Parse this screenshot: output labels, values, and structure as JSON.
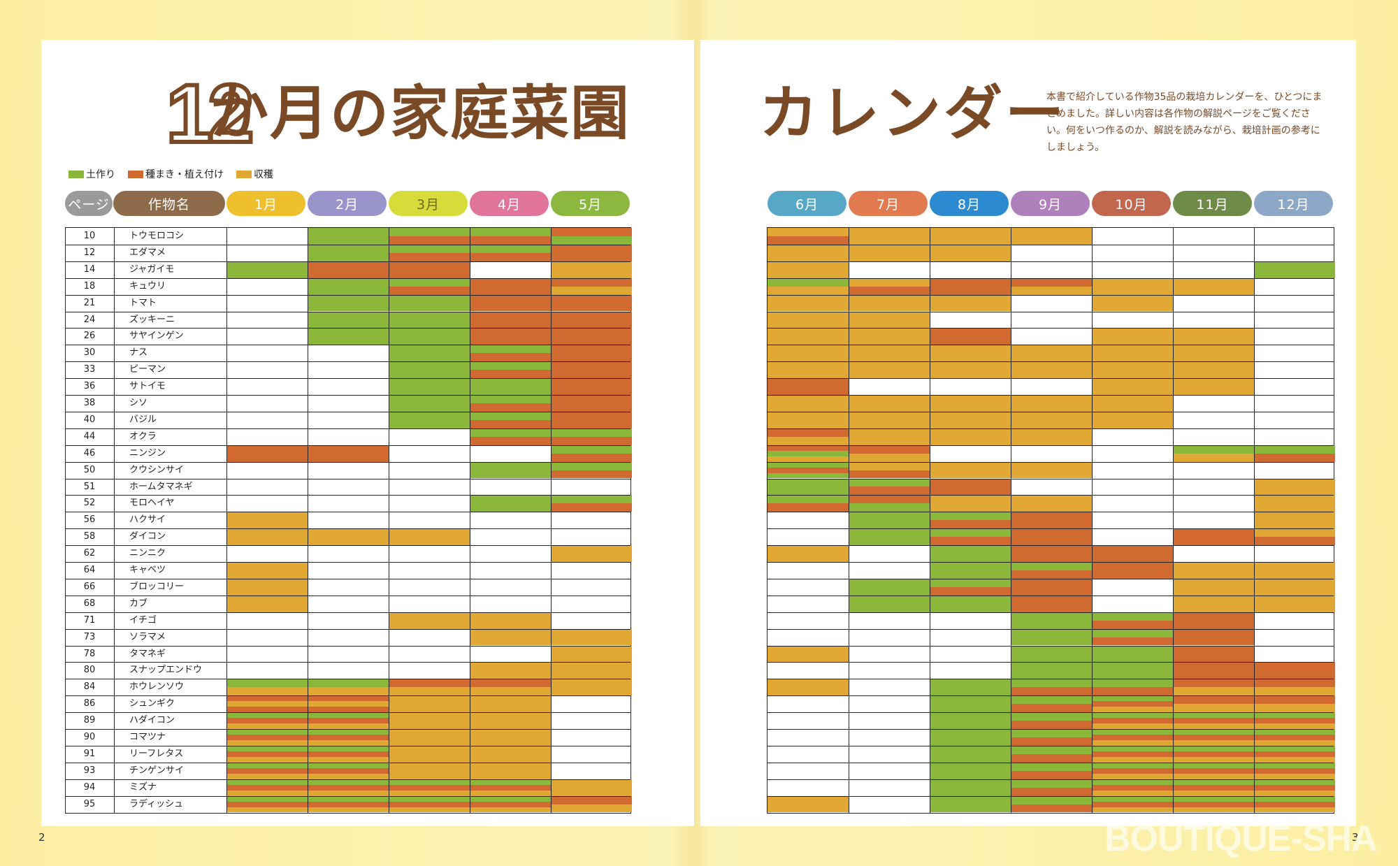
{
  "title_left_num": "12",
  "title_left_text": "か月の家庭菜園",
  "title_right": "カレンダー",
  "description": "本書で紹介している作物35品の栽培カレンダーを、ひとつにまとめました。詳しい内容は各作物の解説ページをご覧ください。何をいつ作るのか、解説を読みながら、栽培計画の参考にしましょう。",
  "legend": [
    {
      "label": "土作り",
      "color": "#8ab63a"
    },
    {
      "label": "種まき・植え付け",
      "color": "#d06a30"
    },
    {
      "label": "収穫",
      "color": "#e0a832"
    }
  ],
  "colors": {
    "green": "#8ab63a",
    "orange": "#d06a30",
    "yellow": "#e0a832"
  },
  "headers": {
    "page": "ページ",
    "name": "作物名"
  },
  "months": [
    {
      "label": "1月",
      "color": "#eec02e"
    },
    {
      "label": "2月",
      "color": "#9a94cc"
    },
    {
      "label": "3月",
      "color": "#d8dc3a"
    },
    {
      "label": "4月",
      "color": "#e0749a"
    },
    {
      "label": "5月",
      "color": "#8cb840"
    },
    {
      "label": "6月",
      "color": "#56a8c6"
    },
    {
      "label": "7月",
      "color": "#e27a50"
    },
    {
      "label": "8月",
      "color": "#2c8ad0"
    },
    {
      "label": "9月",
      "color": "#b080bc"
    },
    {
      "label": "10月",
      "color": "#c2664e"
    },
    {
      "label": "11月",
      "color": "#6e8c48"
    },
    {
      "label": "12月",
      "color": "#8ca8c6"
    }
  ],
  "crops": [
    {
      "page": "10",
      "name": "トウモロコシ",
      "cells": [
        "",
        "g",
        "go",
        "go",
        "og",
        "yo",
        "y",
        "y",
        "y",
        "",
        "",
        ""
      ]
    },
    {
      "page": "12",
      "name": "エダマメ",
      "cells": [
        "",
        "g",
        "go",
        "go",
        "o",
        "y",
        "y",
        "y",
        "",
        "",
        "",
        ""
      ]
    },
    {
      "page": "14",
      "name": "ジャガイモ",
      "cells": [
        "g",
        "o",
        "o",
        "",
        "y",
        "y",
        "",
        "",
        "",
        "",
        "",
        "g"
      ]
    },
    {
      "page": "18",
      "name": "キュウリ",
      "cells": [
        "",
        "g",
        "go",
        "o",
        "oy",
        "gy",
        "yo",
        "o",
        "oy",
        "y",
        "y",
        ""
      ]
    },
    {
      "page": "21",
      "name": "トマト",
      "cells": [
        "",
        "g",
        "g",
        "o",
        "o",
        "y",
        "y",
        "y",
        "",
        "y",
        "",
        ""
      ]
    },
    {
      "page": "24",
      "name": "ズッキーニ",
      "cells": [
        "",
        "g",
        "g",
        "o",
        "o",
        "y",
        "y",
        "",
        "",
        "",
        "",
        ""
      ]
    },
    {
      "page": "26",
      "name": "サヤインゲン",
      "cells": [
        "",
        "g",
        "g",
        "o",
        "o",
        "y",
        "y",
        "o",
        "",
        "y",
        "y",
        ""
      ]
    },
    {
      "page": "30",
      "name": "ナス",
      "cells": [
        "",
        "",
        "g",
        "go",
        "o",
        "y",
        "y",
        "y",
        "y",
        "y",
        "y",
        ""
      ]
    },
    {
      "page": "33",
      "name": "ピーマン",
      "cells": [
        "",
        "",
        "g",
        "go",
        "o",
        "y",
        "y",
        "y",
        "y",
        "y",
        "y",
        ""
      ]
    },
    {
      "page": "36",
      "name": "サトイモ",
      "cells": [
        "",
        "",
        "g",
        "g",
        "o",
        "o",
        "",
        "",
        "",
        "y",
        "y",
        ""
      ]
    },
    {
      "page": "38",
      "name": "シソ",
      "cells": [
        "",
        "",
        "g",
        "go",
        "o",
        "y",
        "y",
        "y",
        "y",
        "y",
        "",
        ""
      ]
    },
    {
      "page": "40",
      "name": "バジル",
      "cells": [
        "",
        "",
        "g",
        "go",
        "o",
        "y",
        "y",
        "y",
        "y",
        "y",
        "",
        ""
      ]
    },
    {
      "page": "44",
      "name": "オクラ",
      "cells": [
        "",
        "",
        "",
        "go",
        "go",
        "oy",
        "y",
        "y",
        "y",
        "",
        "",
        ""
      ]
    },
    {
      "page": "46",
      "name": "ニンジン",
      "cells": [
        "o",
        "o",
        "",
        "",
        "go",
        "ogy",
        "oy",
        "",
        "",
        "",
        "gy",
        "go"
      ]
    },
    {
      "page": "50",
      "name": "クウシンサイ",
      "cells": [
        "",
        "",
        "",
        "g",
        "go",
        "gog",
        "yo",
        "y",
        "y",
        "",
        "",
        ""
      ]
    },
    {
      "page": "51",
      "name": "ホームタマネギ",
      "cells": [
        "",
        "",
        "",
        "",
        "",
        "g",
        "go",
        "o",
        "",
        "",
        "",
        "y"
      ]
    },
    {
      "page": "52",
      "name": "モロヘイヤ",
      "cells": [
        "",
        "",
        "",
        "g",
        "go",
        "go",
        "og",
        "y",
        "y",
        "",
        "",
        "y"
      ]
    },
    {
      "page": "56",
      "name": "ハクサイ",
      "cells": [
        "y",
        "",
        "",
        "",
        "",
        "",
        "g",
        "go",
        "o",
        "",
        "",
        "y"
      ]
    },
    {
      "page": "58",
      "name": "ダイコン",
      "cells": [
        "y",
        "y",
        "y",
        "",
        "",
        "",
        "g",
        "go",
        "o",
        "",
        "o",
        "yo"
      ]
    },
    {
      "page": "62",
      "name": "ニンニク",
      "cells": [
        "",
        "",
        "",
        "",
        "y",
        "y",
        "",
        "g",
        "o",
        "o",
        "",
        ""
      ]
    },
    {
      "page": "64",
      "name": "キャベツ",
      "cells": [
        "y",
        "",
        "",
        "",
        "",
        "",
        "",
        "g",
        "go",
        "o",
        "y",
        "y"
      ]
    },
    {
      "page": "66",
      "name": "ブロッコリー",
      "cells": [
        "y",
        "",
        "",
        "",
        "",
        "",
        "g",
        "go",
        "o",
        "",
        "y",
        "y"
      ]
    },
    {
      "page": "68",
      "name": "カブ",
      "cells": [
        "y",
        "",
        "",
        "",
        "",
        "",
        "g",
        "g",
        "o",
        "",
        "y",
        "y"
      ]
    },
    {
      "page": "71",
      "name": "イチゴ",
      "cells": [
        "",
        "",
        "y",
        "y",
        "",
        "",
        "",
        "",
        "g",
        "go",
        "o",
        ""
      ]
    },
    {
      "page": "73",
      "name": "ソラマメ",
      "cells": [
        "",
        "",
        "",
        "y",
        "y",
        "",
        "",
        "",
        "g",
        "go",
        "o",
        ""
      ]
    },
    {
      "page": "78",
      "name": "タマネギ",
      "cells": [
        "",
        "",
        "",
        "",
        "y",
        "y",
        "",
        "",
        "g",
        "g",
        "o",
        ""
      ]
    },
    {
      "page": "80",
      "name": "スナップエンドウ",
      "cells": [
        "",
        "",
        "",
        "y",
        "y",
        "",
        "",
        "",
        "g",
        "g",
        "o",
        "o"
      ]
    },
    {
      "page": "84",
      "name": "ホウレンソウ",
      "cells": [
        "gy",
        "gy",
        "oy",
        "oy",
        "y",
        "y",
        "",
        "g",
        "go",
        "go",
        "oy",
        "oy"
      ]
    },
    {
      "page": "86",
      "name": "シュンギク",
      "cells": [
        "oyo",
        "oyo",
        "y",
        "y",
        "",
        "",
        "",
        "g",
        "go",
        "goy",
        "oy",
        "oy"
      ]
    },
    {
      "page": "89",
      "name": "ハダイコン",
      "cells": [
        "goy",
        "goy",
        "y",
        "y",
        "",
        "",
        "",
        "g",
        "go",
        "goy",
        "goy",
        "goy"
      ]
    },
    {
      "page": "90",
      "name": "コマツナ",
      "cells": [
        "goy",
        "goy",
        "y",
        "y",
        "",
        "",
        "",
        "g",
        "go",
        "goy",
        "goy",
        "goy"
      ]
    },
    {
      "page": "91",
      "name": "リーフレタス",
      "cells": [
        "goy",
        "goy",
        "y",
        "y",
        "",
        "",
        "",
        "g",
        "go",
        "goy",
        "goy",
        "goy"
      ]
    },
    {
      "page": "93",
      "name": "チンゲンサイ",
      "cells": [
        "goy",
        "goy",
        "y",
        "y",
        "",
        "",
        "",
        "g",
        "go",
        "goy",
        "goy",
        "goy"
      ]
    },
    {
      "page": "94",
      "name": "ミズナ",
      "cells": [
        "goy",
        "goy",
        "goy",
        "goy",
        "y",
        "",
        "",
        "g",
        "go",
        "goy",
        "goy",
        "goy"
      ]
    },
    {
      "page": "95",
      "name": "ラディッシュ",
      "cells": [
        "goy",
        "goy",
        "goy",
        "goy",
        "oy",
        "y",
        "",
        "g",
        "go",
        "goy",
        "goy",
        "goy"
      ]
    }
  ],
  "page_numbers": {
    "left": "2",
    "right": "3"
  },
  "watermark": "BOUTIQUE-SHA"
}
